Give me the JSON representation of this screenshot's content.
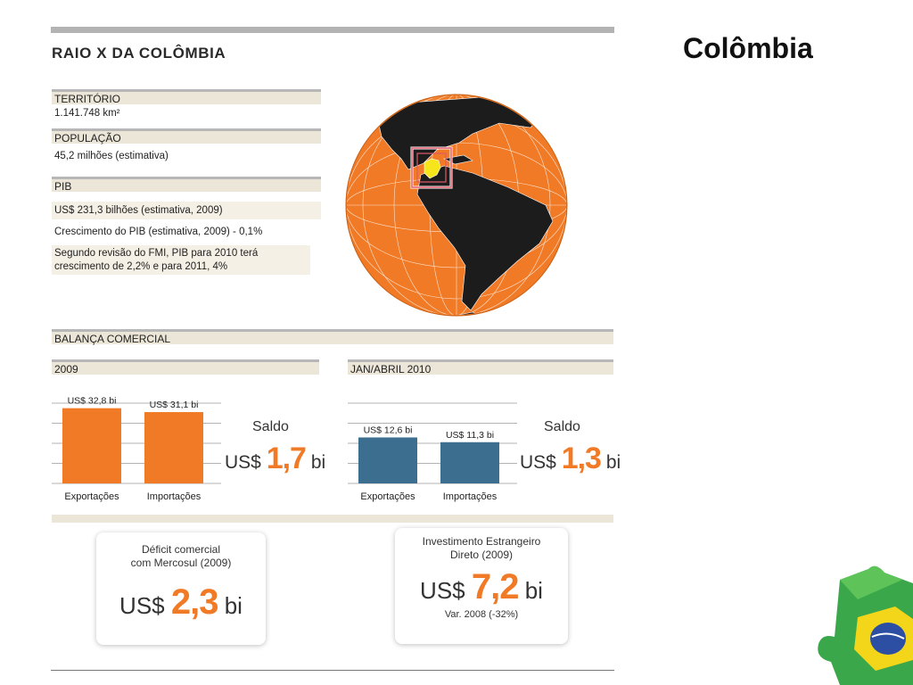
{
  "slide_title": "Colômbia",
  "infographic": {
    "title": "RAIO X DA COLÔMBIA",
    "territorio": {
      "header": "TERRITÓRIO",
      "value": "1.141.748 km²"
    },
    "populacao": {
      "header": "POPULAÇÃO",
      "value": "45,2 milhões (estimativa)"
    },
    "pib": {
      "header": "PIB",
      "rows": [
        "US$ 231,3 bilhões (estimativa, 2009)",
        "Crescimento do PIB (estimativa, 2009) - 0,1%",
        "Segundo revisão do FMI, PIB para 2010 terá crescimento de 2,2% e para 2011, 4%"
      ]
    },
    "balanca": {
      "header": "BALANÇA COMERCIAL",
      "saldo_word": "Saldo",
      "currency": "US$",
      "unit": "bi",
      "panels": [
        {
          "period": "2009",
          "saldo": "1,7"
        },
        {
          "period": "JAN/ABRIL 2010",
          "saldo": "1,3"
        }
      ]
    },
    "cards": [
      {
        "caption_line1": "Déficit comercial",
        "caption_line2": "com Mercosul (2009)",
        "currency": "US$",
        "value": "2,3",
        "unit": "bi"
      },
      {
        "caption_line1": "Investimento Estrangeiro",
        "caption_line2": "Direto (2009)",
        "currency": "US$",
        "value": "7,2",
        "unit": "bi",
        "note": "Var. 2008 (-32%)"
      }
    ]
  },
  "chart_data": [
    {
      "type": "bar",
      "categories": [
        "Exportações",
        "Importações"
      ],
      "values": [
        32.8,
        31.1
      ],
      "data_labels": [
        "US$ 32,8 bi",
        "US$ 31,1 bi"
      ],
      "color": "#f07a25",
      "ylim": [
        0,
        35
      ]
    },
    {
      "type": "bar",
      "categories": [
        "Exportações",
        "Importações"
      ],
      "values": [
        12.6,
        11.3
      ],
      "data_labels": [
        "US$ 12,6 bi",
        "US$ 11,3 bi"
      ],
      "color": "#3b6e8f",
      "ylim": [
        0,
        22
      ]
    }
  ],
  "colors": {
    "orange": "#f07a25",
    "blue": "#3b6e8f",
    "beige": "#ece6d8",
    "highlight_colombia": "#f5e51a",
    "marker": "#e05a6a"
  }
}
